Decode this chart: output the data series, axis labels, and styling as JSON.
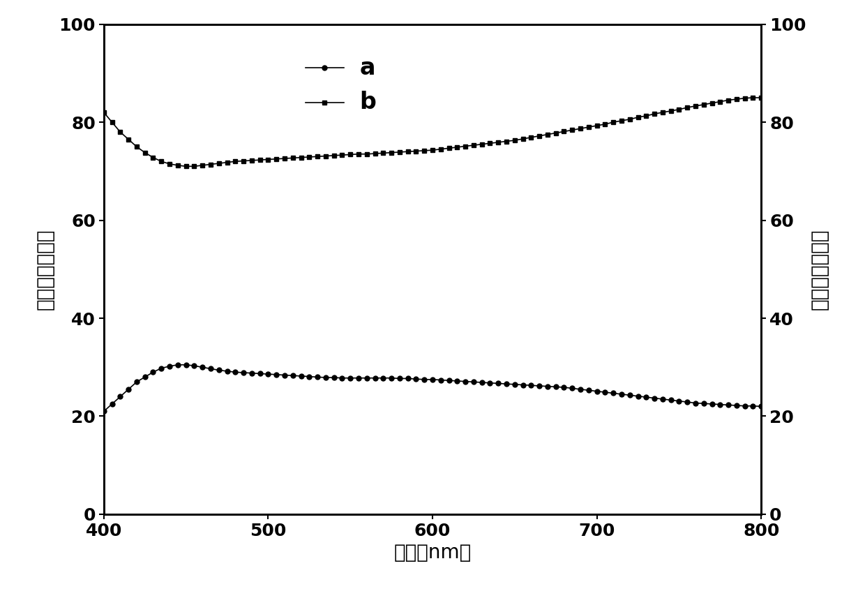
{
  "title": "",
  "xlabel": "波长（nm）",
  "ylabel_left": "反射光谱（％）",
  "ylabel_right": "透射光谱（％）",
  "legend_a": "a",
  "legend_b": "b",
  "xlim": [
    400,
    800
  ],
  "ylim": [
    0,
    100
  ],
  "xticks": [
    400,
    500,
    600,
    700,
    800
  ],
  "yticks": [
    0,
    20,
    40,
    60,
    80,
    100
  ],
  "curve_a_x": [
    400,
    405,
    410,
    415,
    420,
    425,
    430,
    435,
    440,
    445,
    450,
    455,
    460,
    465,
    470,
    475,
    480,
    485,
    490,
    495,
    500,
    505,
    510,
    515,
    520,
    525,
    530,
    535,
    540,
    545,
    550,
    555,
    560,
    565,
    570,
    575,
    580,
    585,
    590,
    595,
    600,
    605,
    610,
    615,
    620,
    625,
    630,
    635,
    640,
    645,
    650,
    655,
    660,
    665,
    670,
    675,
    680,
    685,
    690,
    695,
    700,
    705,
    710,
    715,
    720,
    725,
    730,
    735,
    740,
    745,
    750,
    755,
    760,
    765,
    770,
    775,
    780,
    785,
    790,
    795,
    800
  ],
  "curve_a_y": [
    21.0,
    22.5,
    24.0,
    25.5,
    27.0,
    28.0,
    29.0,
    29.8,
    30.2,
    30.5,
    30.5,
    30.3,
    30.0,
    29.7,
    29.4,
    29.2,
    29.0,
    28.9,
    28.8,
    28.7,
    28.6,
    28.5,
    28.4,
    28.3,
    28.2,
    28.1,
    28.0,
    27.9,
    27.9,
    27.8,
    27.8,
    27.8,
    27.8,
    27.8,
    27.8,
    27.8,
    27.7,
    27.7,
    27.6,
    27.5,
    27.5,
    27.4,
    27.3,
    27.2,
    27.1,
    27.0,
    26.9,
    26.8,
    26.7,
    26.6,
    26.5,
    26.4,
    26.3,
    26.2,
    26.1,
    26.0,
    25.9,
    25.7,
    25.5,
    25.3,
    25.1,
    24.9,
    24.7,
    24.5,
    24.3,
    24.1,
    23.9,
    23.7,
    23.5,
    23.3,
    23.1,
    22.9,
    22.7,
    22.6,
    22.5,
    22.4,
    22.3,
    22.2,
    22.1,
    22.1,
    22.0
  ],
  "curve_b_x": [
    400,
    405,
    410,
    415,
    420,
    425,
    430,
    435,
    440,
    445,
    450,
    455,
    460,
    465,
    470,
    475,
    480,
    485,
    490,
    495,
    500,
    505,
    510,
    515,
    520,
    525,
    530,
    535,
    540,
    545,
    550,
    555,
    560,
    565,
    570,
    575,
    580,
    585,
    590,
    595,
    600,
    605,
    610,
    615,
    620,
    625,
    630,
    635,
    640,
    645,
    650,
    655,
    660,
    665,
    670,
    675,
    680,
    685,
    690,
    695,
    700,
    705,
    710,
    715,
    720,
    725,
    730,
    735,
    740,
    745,
    750,
    755,
    760,
    765,
    770,
    775,
    780,
    785,
    790,
    795,
    800
  ],
  "curve_b_y": [
    82.0,
    80.0,
    78.0,
    76.5,
    75.0,
    73.8,
    72.8,
    72.0,
    71.5,
    71.2,
    71.0,
    71.0,
    71.2,
    71.4,
    71.6,
    71.8,
    72.0,
    72.1,
    72.2,
    72.3,
    72.4,
    72.5,
    72.6,
    72.7,
    72.8,
    72.9,
    73.0,
    73.1,
    73.2,
    73.3,
    73.4,
    73.5,
    73.5,
    73.6,
    73.7,
    73.8,
    73.9,
    74.0,
    74.1,
    74.2,
    74.3,
    74.5,
    74.7,
    74.9,
    75.1,
    75.3,
    75.5,
    75.7,
    75.9,
    76.1,
    76.3,
    76.6,
    76.9,
    77.2,
    77.5,
    77.8,
    78.1,
    78.4,
    78.7,
    79.0,
    79.3,
    79.6,
    80.0,
    80.3,
    80.6,
    81.0,
    81.3,
    81.7,
    82.0,
    82.3,
    82.6,
    83.0,
    83.3,
    83.6,
    83.9,
    84.2,
    84.5,
    84.7,
    84.9,
    85.0,
    85.0
  ],
  "line_color": "#000000",
  "marker_a": "o",
  "marker_b": "s",
  "marker_size_a": 5,
  "marker_size_b": 5,
  "linewidth": 1.2,
  "font_size_label": 20,
  "font_size_tick": 18,
  "font_size_legend": 20,
  "background_color": "#ffffff"
}
